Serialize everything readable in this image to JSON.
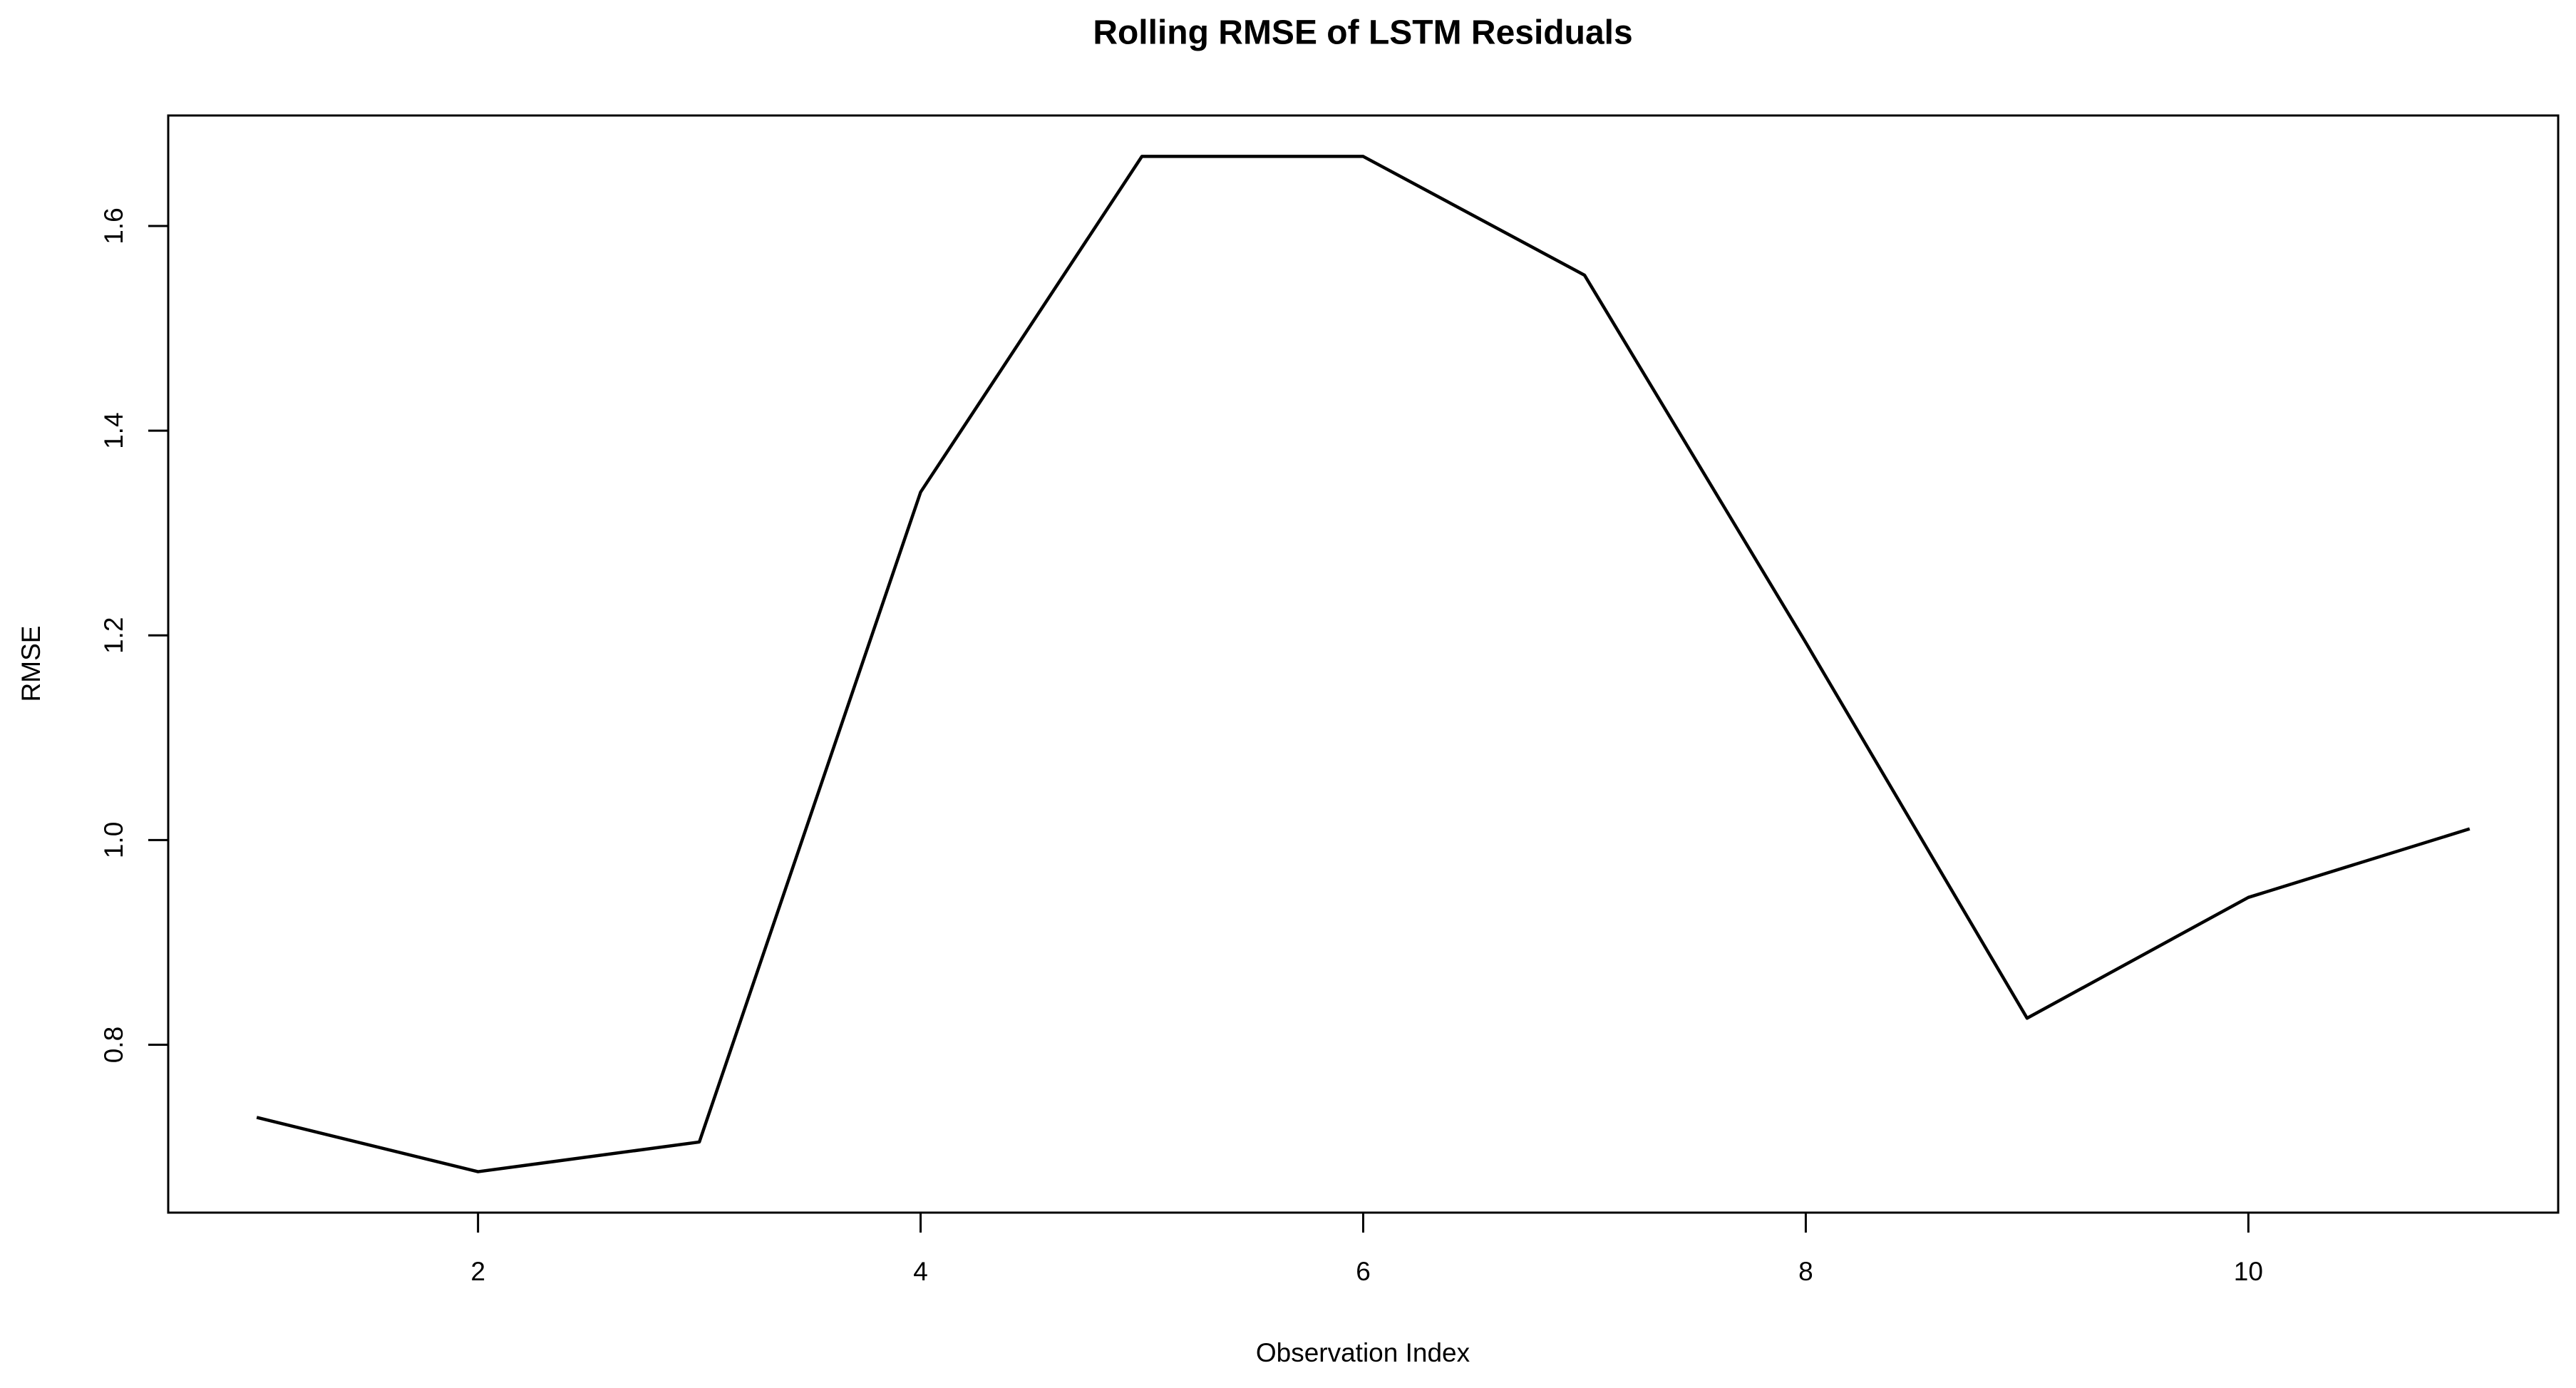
{
  "chart_data": {
    "type": "line",
    "title": "Rolling RMSE of LSTM Residuals",
    "x_label": "Observation Index",
    "y_label": "RMSE",
    "x": [
      1,
      2,
      3,
      4,
      5,
      6,
      7,
      8,
      9,
      10,
      11
    ],
    "series": [
      {
        "color": "#000000",
        "values": [
          0.729,
          0.676,
          0.705,
          1.34,
          1.668,
          1.668,
          1.552,
          1.193,
          0.826,
          0.944,
          1.011
        ]
      }
    ],
    "xlim": [
      0.6,
      11.4
    ],
    "xticks": [
      2,
      4,
      6,
      8,
      10
    ],
    "ylim": [
      0.636,
      1.708
    ],
    "yticks": [
      0.8,
      {
        "value": 1,
        "label": "1.0"
      },
      1.2,
      1.4,
      1.6
    ],
    "grid": false
  }
}
